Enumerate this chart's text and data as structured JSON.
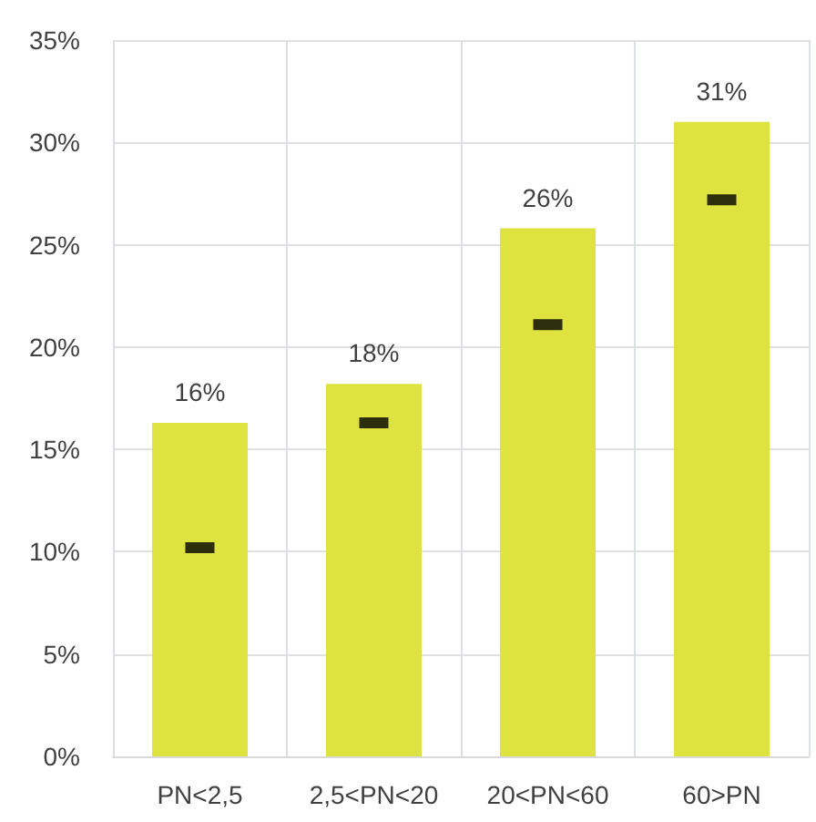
{
  "chart_data": {
    "type": "bar",
    "categories": [
      "PN<2,5",
      "2,5<PN<20",
      "20<PN<60",
      "60>PN"
    ],
    "series": [
      {
        "color": "#dfe33f",
        "values": [
          16.3,
          18.2,
          25.8,
          31.0
        ],
        "value_labels": [
          "16%",
          "18%",
          "26%",
          "31%"
        ]
      },
      {
        "type": "scatter",
        "color": "#000000",
        "x": [
          "PN<2,5",
          "2,5<PN<20",
          "20<PN<60",
          "60>PN"
        ],
        "values": [
          10.2,
          16.3,
          21.1,
          27.2
        ]
      }
    ],
    "ylim": [
      0,
      35
    ],
    "yticks": [
      {
        "value": 0,
        "label": "0%"
      },
      {
        "value": 5,
        "label": "5%"
      },
      {
        "value": 10,
        "label": "10%"
      },
      {
        "value": 15,
        "label": "15%"
      },
      {
        "value": 20,
        "label": "20%"
      },
      {
        "value": 25,
        "label": "25%"
      },
      {
        "value": 30,
        "label": "30%"
      },
      {
        "value": 35,
        "label": "35%"
      }
    ],
    "grid": true
  }
}
